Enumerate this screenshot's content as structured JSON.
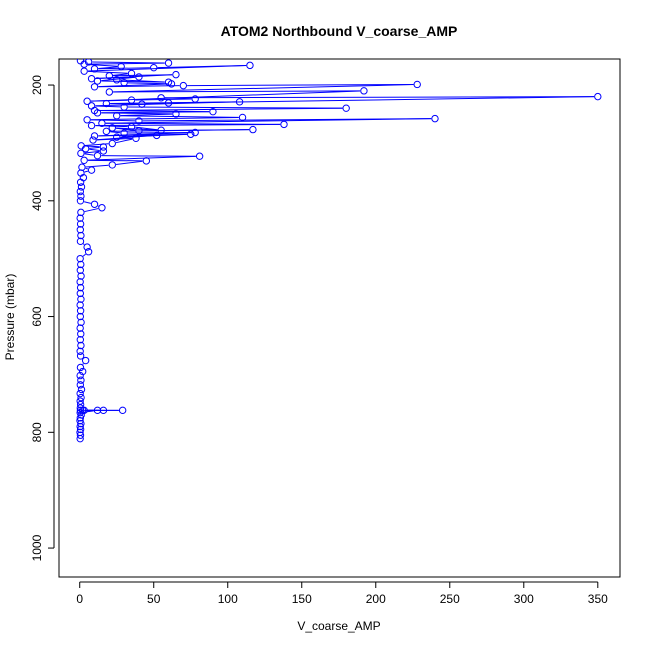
{
  "chart_data": {
    "type": "line",
    "title": "ATOM2 Northbound V_coarse_AMP",
    "xlabel": "V_coarse_AMP",
    "ylabel": "Pressure (mbar)",
    "x_ticks": [
      0,
      50,
      100,
      150,
      200,
      250,
      300,
      350
    ],
    "y_ticks": [
      200,
      400,
      600,
      800,
      1000
    ],
    "xlim": [
      -14,
      365
    ],
    "ylim": [
      1050,
      155
    ],
    "y_reversed": true,
    "marker": "open-circle",
    "colors": {
      "series": "#0000ff",
      "axis": "#000000"
    },
    "series": [
      {
        "points": [
          [
            0.3,
            811
          ],
          [
            0.5,
            805
          ],
          [
            0.2,
            800
          ],
          [
            0.6,
            795
          ],
          [
            0.3,
            790
          ],
          [
            0.8,
            785
          ],
          [
            0.2,
            780
          ],
          [
            0.4,
            775
          ],
          [
            1.0,
            770
          ],
          [
            0.3,
            766
          ],
          [
            12,
            762
          ],
          [
            2,
            762
          ],
          [
            16,
            762
          ],
          [
            0.5,
            762
          ],
          [
            29,
            762
          ],
          [
            3,
            762
          ],
          [
            0.4,
            758
          ],
          [
            0.6,
            752
          ],
          [
            0.3,
            746
          ],
          [
            0.9,
            740
          ],
          [
            0.3,
            733
          ],
          [
            1.2,
            726
          ],
          [
            0.4,
            718
          ],
          [
            0.8,
            710
          ],
          [
            0.3,
            702
          ],
          [
            2.0,
            695
          ],
          [
            0.5,
            688
          ],
          [
            4.0,
            676
          ],
          [
            0.6,
            668
          ],
          [
            0.3,
            660
          ],
          [
            0.8,
            650
          ],
          [
            0.4,
            640
          ],
          [
            0.7,
            630
          ],
          [
            0.3,
            620
          ],
          [
            0.9,
            610
          ],
          [
            0.4,
            600
          ],
          [
            0.6,
            590
          ],
          [
            0.3,
            580
          ],
          [
            0.8,
            570
          ],
          [
            0.4,
            560
          ],
          [
            0.6,
            550
          ],
          [
            0.3,
            540
          ],
          [
            0.9,
            530
          ],
          [
            0.4,
            520
          ],
          [
            0.7,
            510
          ],
          [
            0.3,
            500
          ],
          [
            6,
            488
          ],
          [
            5,
            480
          ],
          [
            0.5,
            470
          ],
          [
            0.8,
            460
          ],
          [
            0.4,
            450
          ],
          [
            0.6,
            440
          ],
          [
            0.3,
            430
          ],
          [
            0.8,
            420
          ],
          [
            15,
            412
          ],
          [
            10,
            406
          ],
          [
            0.5,
            400
          ],
          [
            0.8,
            392
          ],
          [
            0.4,
            384
          ],
          [
            1.2,
            376
          ],
          [
            0.6,
            368
          ],
          [
            2.5,
            360
          ],
          [
            0.8,
            352
          ],
          [
            8,
            347
          ],
          [
            1.5,
            342
          ],
          [
            22,
            338
          ],
          [
            45,
            331
          ],
          [
            3,
            330
          ],
          [
            81,
            323
          ],
          [
            12,
            322
          ],
          [
            0.8,
            318
          ],
          [
            16,
            314
          ],
          [
            4,
            310
          ],
          [
            16,
            307
          ],
          [
            1.0,
            305
          ],
          [
            22,
            301
          ],
          [
            38,
            292
          ],
          [
            9,
            295
          ],
          [
            52,
            287
          ],
          [
            25,
            290
          ],
          [
            75,
            285
          ],
          [
            10,
            288
          ],
          [
            78,
            282
          ],
          [
            30,
            283
          ],
          [
            18,
            280
          ],
          [
            117,
            277
          ],
          [
            40,
            279
          ],
          [
            22,
            274
          ],
          [
            55,
            278
          ],
          [
            35,
            272
          ],
          [
            8,
            270
          ],
          [
            138,
            268
          ],
          [
            15,
            266
          ],
          [
            240,
            258
          ],
          [
            40,
            262
          ],
          [
            5,
            260
          ],
          [
            110,
            256
          ],
          [
            25,
            253
          ],
          [
            65,
            250
          ],
          [
            12,
            248
          ],
          [
            90,
            246
          ],
          [
            10,
            244
          ],
          [
            180,
            240
          ],
          [
            30,
            238
          ],
          [
            8,
            236
          ],
          [
            108,
            229
          ],
          [
            18,
            232
          ],
          [
            42,
            233
          ],
          [
            60,
            231
          ],
          [
            350,
            220
          ],
          [
            55,
            222
          ],
          [
            78,
            224
          ],
          [
            35,
            226
          ],
          [
            5,
            228
          ],
          [
            192,
            210
          ],
          [
            20,
            212
          ],
          [
            228,
            199
          ],
          [
            70,
            201
          ],
          [
            10,
            203
          ],
          [
            62,
            198
          ],
          [
            30,
            196
          ],
          [
            25,
            191
          ],
          [
            60,
            195
          ],
          [
            12,
            193
          ],
          [
            40,
            186
          ],
          [
            8,
            189
          ],
          [
            65,
            182
          ],
          [
            20,
            184
          ],
          [
            35,
            180
          ],
          [
            3,
            176
          ],
          [
            115,
            166
          ],
          [
            50,
            170
          ],
          [
            10,
            172
          ],
          [
            28,
            168
          ],
          [
            3,
            164
          ],
          [
            60,
            162
          ],
          [
            6,
            160
          ],
          [
            0.5,
            158
          ]
        ]
      }
    ]
  }
}
